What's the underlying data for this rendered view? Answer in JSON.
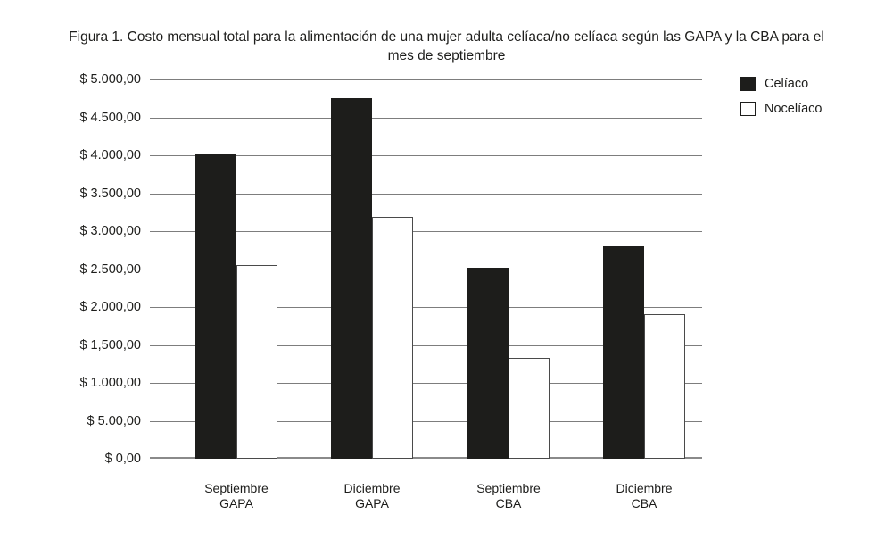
{
  "figure": {
    "title_line1": "Figura 1. Costo mensual total para la alimentación de una mujer adulta celíaca/no celíaca según las GAPA y la CBA para el",
    "title_line2": "mes de septiembre"
  },
  "legend": {
    "items": [
      {
        "label": "Celíaco",
        "swatch": "black-filled-square",
        "fill": "#1d1d1b"
      },
      {
        "label": "Nocelíaco",
        "swatch": "white-outlined-square",
        "fill": "#ffffff"
      }
    ]
  },
  "colors": {
    "bar_black": "#1d1d1b",
    "bar_white": "#ffffff",
    "gridline": "#7d7d7d",
    "text": "#1d1d1b",
    "background": "#ffffff"
  },
  "chart_data": {
    "type": "bar",
    "title": "Figura 1. Costo mensual total para la alimentación de una mujer adulta celíaca/no celíaca según las GAPA y la CBA para el mes de septiembre",
    "categories": [
      {
        "line1": "Septiembre",
        "line2": "GAPA"
      },
      {
        "line1": "Diciembre",
        "line2": "GAPA"
      },
      {
        "line1": "Septiembre",
        "line2": "CBA"
      },
      {
        "line1": "Diciembre",
        "line2": "CBA"
      }
    ],
    "series": [
      {
        "name": "Celíaco",
        "fill": "#1d1d1b",
        "values": [
          4020,
          4750,
          2520,
          2800
        ]
      },
      {
        "name": "Nocelíaco",
        "fill": "#ffffff",
        "values": [
          2550,
          3190,
          1330,
          1910
        ]
      }
    ],
    "ylim": [
      0,
      5000
    ],
    "ytick_interval": 500,
    "yticks": [
      {
        "value": 5000,
        "label": "$ 5.000,00"
      },
      {
        "value": 4500,
        "label": "$ 4.500,00"
      },
      {
        "value": 4000,
        "label": "$ 4.000,00"
      },
      {
        "value": 3500,
        "label": "$ 3.500,00"
      },
      {
        "value": 3000,
        "label": "$ 3.000,00"
      },
      {
        "value": 2500,
        "label": "$ 2.500,00"
      },
      {
        "value": 2000,
        "label": "$ 2.000,00"
      },
      {
        "value": 1500,
        "label": "$ 1,500,00"
      },
      {
        "value": 1000,
        "label": "$ 1.000,00"
      },
      {
        "value": 500,
        "label": "$ 5.00,00"
      },
      {
        "value": 0,
        "label": "$ 0,00"
      }
    ],
    "grid": "horizontal",
    "legend_position": "top-right",
    "xlabel": "",
    "ylabel": ""
  }
}
